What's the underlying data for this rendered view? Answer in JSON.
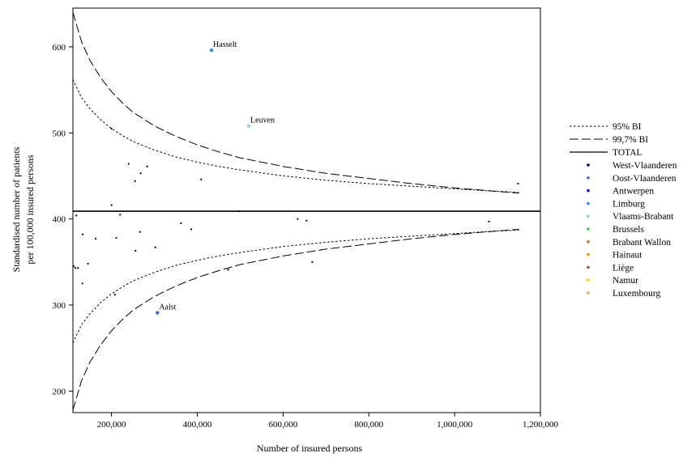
{
  "chart_data": {
    "type": "scatter",
    "title": "",
    "xlabel": "Number of insured persons",
    "ylabel_lines": [
      "Standardised number of patients",
      "per 100,000 insured persons"
    ],
    "xlim": [
      110000,
      1200000
    ],
    "ylim": [
      175,
      645
    ],
    "x_ticks": [
      200000,
      400000,
      600000,
      800000,
      1000000,
      1200000
    ],
    "x_tick_labels": [
      "200,000",
      "400,000",
      "600,000",
      "800,000",
      "1,000,000",
      "1,200,000"
    ],
    "y_ticks": [
      200,
      300,
      400,
      500,
      600
    ],
    "y_tick_labels": [
      "200",
      "300",
      "400",
      "500",
      "600"
    ],
    "grid": false,
    "legend_position": "right",
    "total": {
      "name": "TOTAL",
      "y": 409
    },
    "funnel": [
      {
        "name": "95% BI",
        "style": "dotted",
        "x": [
          110000,
          130000,
          150000,
          175000,
          200000,
          225000,
          250000,
          300000,
          350000,
          400000,
          450000,
          500000,
          600000,
          700000,
          800000,
          900000,
          1000000,
          1100000,
          1150000
        ],
        "upper": [
          562,
          541,
          528,
          515,
          505,
          497,
          490,
          480,
          472,
          466,
          461,
          457,
          450,
          445,
          441,
          438,
          435,
          432,
          431
        ],
        "lower": [
          256,
          277,
          290,
          303,
          313,
          321,
          328,
          338,
          346,
          352,
          357,
          361,
          368,
          373,
          377,
          380,
          383,
          386,
          387
        ]
      },
      {
        "name": "99,7% BI",
        "style": "dashed",
        "x": [
          110000,
          130000,
          150000,
          175000,
          200000,
          225000,
          250000,
          300000,
          350000,
          400000,
          450000,
          500000,
          600000,
          700000,
          800000,
          900000,
          1000000,
          1100000,
          1150000
        ],
        "upper": [
          640,
          606,
          584,
          564,
          548,
          535,
          524,
          508,
          496,
          486,
          478,
          471,
          461,
          453,
          447,
          441,
          436,
          432,
          430
        ],
        "lower": [
          178,
          212,
          234,
          254,
          270,
          283,
          294,
          310,
          322,
          332,
          340,
          347,
          357,
          365,
          371,
          377,
          382,
          386,
          388
        ]
      }
    ],
    "series": [
      {
        "name": "West-Vlaanderen",
        "color": "#00008b",
        "points": []
      },
      {
        "name": "Oost-Vlaanderen",
        "color": "#4169e1",
        "points": [
          [
            307000,
            291
          ]
        ]
      },
      {
        "name": "Antwerpen",
        "color": "#0000ff",
        "points": []
      },
      {
        "name": "Limburg",
        "color": "#1e90ff",
        "points": [
          [
            433000,
            596
          ]
        ]
      },
      {
        "name": "Vlaams-Brabant",
        "color": "#87cefa",
        "points": [
          [
            520000,
            508
          ]
        ]
      },
      {
        "name": "Brussels",
        "color": "#32cd32",
        "points": []
      },
      {
        "name": "Brabant Wallon",
        "color": "#d2691e",
        "points": []
      },
      {
        "name": "Hainaut",
        "color": "#ff8c00",
        "points": []
      },
      {
        "name": "Liège",
        "color": "#a0522d",
        "points": []
      },
      {
        "name": "Namur",
        "color": "#ffd700",
        "points": []
      },
      {
        "name": "Luxembourg",
        "color": "#f4a460",
        "points": []
      }
    ],
    "other_points": [
      [
        200000,
        505
      ],
      [
        240000,
        464
      ],
      [
        255000,
        444
      ],
      [
        268000,
        453
      ],
      [
        283000,
        461
      ],
      [
        409000,
        446
      ],
      [
        1148000,
        441
      ],
      [
        200000,
        416
      ],
      [
        497000,
        409
      ],
      [
        220000,
        405
      ],
      [
        118000,
        404
      ],
      [
        362000,
        395
      ],
      [
        634000,
        400
      ],
      [
        655000,
        398
      ],
      [
        1080000,
        397
      ],
      [
        386000,
        388
      ],
      [
        266000,
        385
      ],
      [
        133000,
        382
      ],
      [
        163000,
        377
      ],
      [
        211000,
        378
      ],
      [
        302000,
        367
      ],
      [
        256000,
        363
      ],
      [
        145000,
        348
      ],
      [
        112000,
        345
      ],
      [
        116000,
        343
      ],
      [
        122000,
        343
      ],
      [
        472000,
        341
      ],
      [
        668000,
        350
      ],
      [
        132000,
        325
      ],
      [
        208000,
        312
      ]
    ],
    "annotations": [
      {
        "text": "Hasselt",
        "x": 433000,
        "y": 596
      },
      {
        "text": "Leuven",
        "x": 520000,
        "y": 508
      },
      {
        "text": "Aalst",
        "x": 307000,
        "y": 291
      }
    ]
  }
}
